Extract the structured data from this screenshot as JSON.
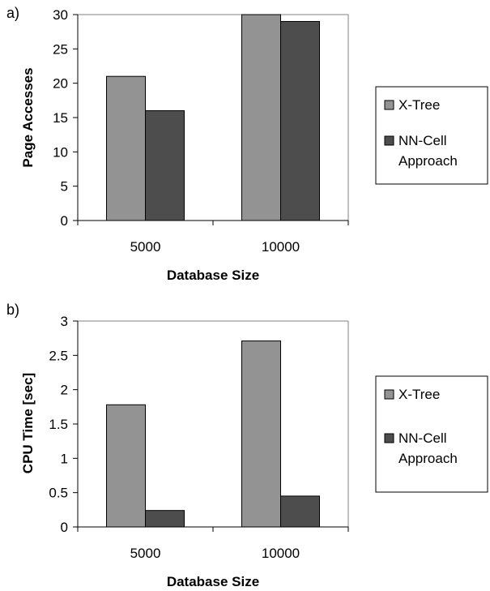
{
  "chart_data": [
    {
      "type": "bar",
      "panel_label": "a)",
      "categories": [
        "5000",
        "10000"
      ],
      "series": [
        {
          "name": "X-Tree",
          "values": [
            21,
            30
          ],
          "color": "#939393"
        },
        {
          "name": "NN-Cell Approach",
          "values": [
            16,
            29
          ],
          "color": "#4d4d4d"
        }
      ],
      "xlabel": "Database Size",
      "ylabel": "Page Accesses",
      "ylim": [
        0,
        30
      ],
      "yticks": [
        "0",
        "5",
        "10",
        "15",
        "20",
        "25",
        "30"
      ],
      "legend": {
        "position": "right",
        "entries": [
          {
            "line1": "X-Tree",
            "line2": ""
          },
          {
            "line1": "NN-Cell",
            "line2": "Approach"
          }
        ]
      },
      "grid": false
    },
    {
      "type": "bar",
      "panel_label": "b)",
      "categories": [
        "5000",
        "10000"
      ],
      "series": [
        {
          "name": "X-Tree",
          "values": [
            1.78,
            2.71
          ],
          "color": "#939393"
        },
        {
          "name": "NN-Cell Approach",
          "values": [
            0.24,
            0.45
          ],
          "color": "#4d4d4d"
        }
      ],
      "xlabel": "Database Size",
      "ylabel": "CPU Time [sec]",
      "ylim": [
        0,
        3
      ],
      "yticks": [
        "0",
        "0.5",
        "1",
        "1.5",
        "2",
        "2.5",
        "3"
      ],
      "legend": {
        "position": "right",
        "entries": [
          {
            "line1": "X-Tree",
            "line2": ""
          },
          {
            "line1": "NN-Cell",
            "line2": "Approach"
          }
        ]
      },
      "grid": false
    }
  ]
}
